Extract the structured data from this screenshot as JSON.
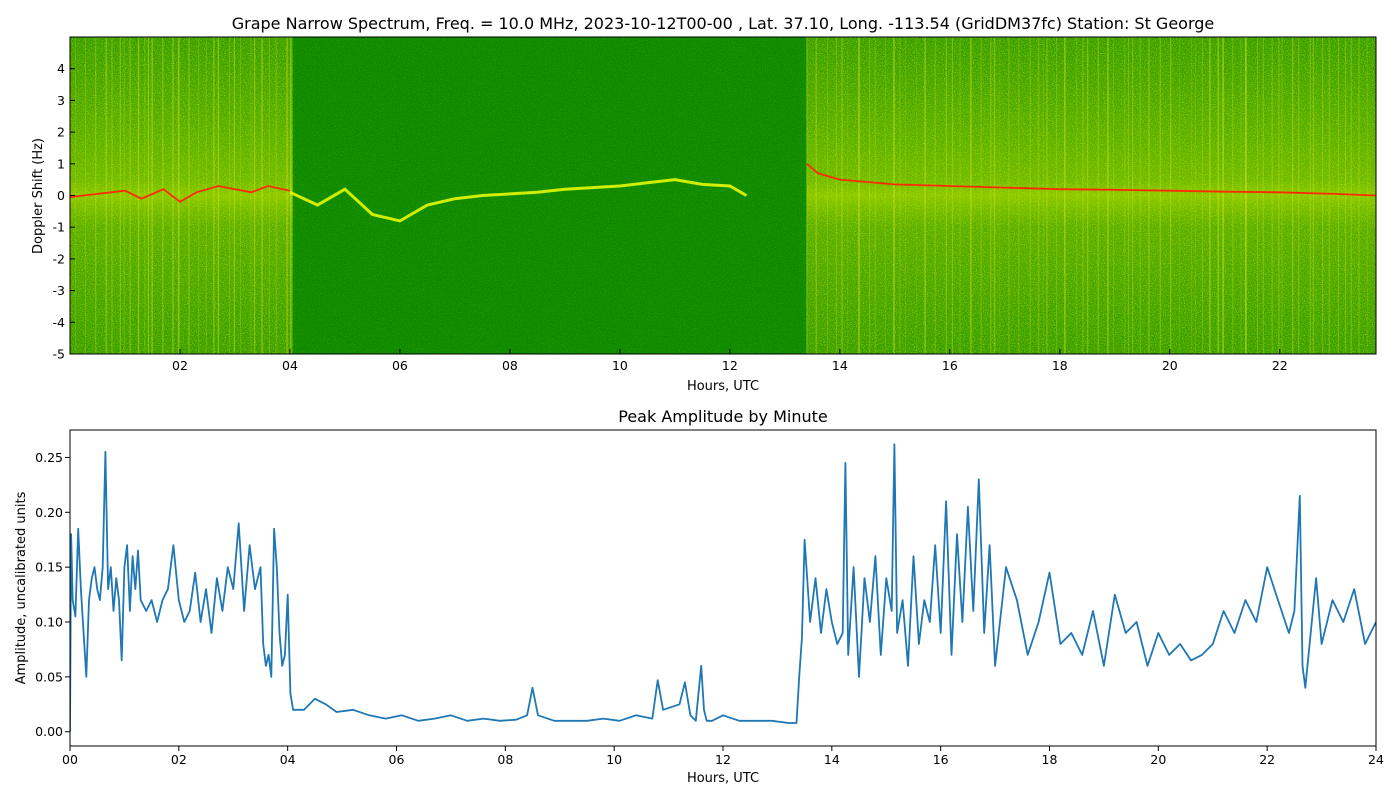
{
  "chart_data": [
    {
      "type": "heatmap",
      "title": "Grape Narrow Spectrum, Freq. = 10.0 MHz, 2023-10-12T00-00 , Lat.  37.10, Long. -113.54 (GridDM37fc) Station: St George",
      "xlabel": "Hours, UTC",
      "ylabel": "Doppler Shift (Hz)",
      "xlim": [
        0,
        23.75
      ],
      "ylim": [
        -5,
        5
      ],
      "x_ticks": [
        "02",
        "04",
        "06",
        "08",
        "10",
        "12",
        "14",
        "16",
        "18",
        "20",
        "22"
      ],
      "x_tick_values": [
        2,
        4,
        6,
        8,
        10,
        12,
        14,
        16,
        18,
        20,
        22
      ],
      "y_ticks": [
        "-5",
        "-4",
        "-3",
        "-2",
        "-1",
        "0",
        "1",
        "2",
        "3",
        "4"
      ],
      "y_tick_values": [
        -5,
        -4,
        -3,
        -2,
        -1,
        0,
        1,
        2,
        3,
        4
      ],
      "colors": {
        "background": "#0e8a00",
        "noise": "#b6d600",
        "signal": "#f2ff00",
        "peak": "#ff2a00"
      },
      "noisy_intervals": [
        [
          0,
          4.05
        ],
        [
          13.4,
          23.75
        ]
      ],
      "peak_trace": {
        "x": [
          0,
          0.5,
          1,
          1.3,
          1.7,
          2.0,
          2.3,
          2.7,
          3.0,
          3.3,
          3.6,
          4.0,
          13.4,
          13.6,
          14,
          15,
          16,
          17,
          18,
          19,
          20,
          21,
          22,
          23,
          23.75
        ],
        "y": [
          -0.05,
          0.05,
          0.15,
          -0.1,
          0.2,
          -0.2,
          0.1,
          0.3,
          0.2,
          0.1,
          0.3,
          0.15,
          1.0,
          0.7,
          0.5,
          0.35,
          0.3,
          0.25,
          0.2,
          0.18,
          0.15,
          0.12,
          0.1,
          0.05,
          0.0
        ]
      },
      "signal_trace": {
        "x": [
          4.0,
          4.5,
          5.0,
          5.5,
          6.0,
          6.5,
          7.0,
          7.5,
          8.0,
          8.5,
          9.0,
          9.5,
          10.0,
          10.5,
          11.0,
          11.5,
          12.0,
          12.3
        ],
        "y": [
          0.1,
          -0.3,
          0.2,
          -0.6,
          -0.8,
          -0.3,
          -0.1,
          0.0,
          0.05,
          0.1,
          0.2,
          0.25,
          0.3,
          0.4,
          0.5,
          0.35,
          0.3,
          0.0
        ]
      }
    },
    {
      "type": "line",
      "title": "Peak Amplitude by Minute",
      "xlabel": "Hours, UTC",
      "ylabel": "Amplitude, uncalibrated units",
      "xlim": [
        0,
        24
      ],
      "ylim": [
        -0.013,
        0.275
      ],
      "x_ticks": [
        "00",
        "02",
        "04",
        "06",
        "08",
        "10",
        "12",
        "14",
        "16",
        "18",
        "20",
        "22",
        "24"
      ],
      "x_tick_values": [
        0,
        2,
        4,
        6,
        8,
        10,
        12,
        14,
        16,
        18,
        20,
        22,
        24
      ],
      "y_ticks": [
        "0.00",
        "0.05",
        "0.10",
        "0.15",
        "0.20",
        "0.25"
      ],
      "y_tick_values": [
        0,
        0.05,
        0.1,
        0.15,
        0.2,
        0.25
      ],
      "color": "#1f77b4",
      "x": [
        0,
        0.02,
        0.05,
        0.1,
        0.15,
        0.2,
        0.25,
        0.3,
        0.35,
        0.4,
        0.45,
        0.5,
        0.55,
        0.6,
        0.65,
        0.7,
        0.75,
        0.8,
        0.85,
        0.9,
        0.95,
        1.0,
        1.05,
        1.1,
        1.15,
        1.2,
        1.25,
        1.3,
        1.4,
        1.5,
        1.6,
        1.7,
        1.8,
        1.9,
        2.0,
        2.1,
        2.2,
        2.3,
        2.4,
        2.5,
        2.6,
        2.7,
        2.8,
        2.9,
        3.0,
        3.1,
        3.2,
        3.3,
        3.4,
        3.5,
        3.55,
        3.6,
        3.65,
        3.7,
        3.75,
        3.8,
        3.85,
        3.9,
        3.95,
        4.0,
        4.05,
        4.1,
        4.3,
        4.5,
        4.7,
        4.9,
        5.2,
        5.5,
        5.8,
        6.1,
        6.4,
        6.7,
        7.0,
        7.3,
        7.6,
        7.9,
        8.2,
        8.4,
        8.5,
        8.6,
        8.9,
        9.2,
        9.5,
        9.8,
        10.1,
        10.4,
        10.7,
        10.8,
        10.9,
        11.2,
        11.3,
        11.4,
        11.5,
        11.6,
        11.65,
        11.7,
        11.8,
        12.0,
        12.3,
        12.6,
        12.9,
        13.2,
        13.35,
        13.4,
        13.45,
        13.5,
        13.6,
        13.7,
        13.8,
        13.9,
        14.0,
        14.1,
        14.2,
        14.25,
        14.3,
        14.4,
        14.5,
        14.6,
        14.7,
        14.8,
        14.9,
        15.0,
        15.1,
        15.15,
        15.2,
        15.3,
        15.4,
        15.5,
        15.6,
        15.7,
        15.8,
        15.9,
        16.0,
        16.1,
        16.2,
        16.3,
        16.4,
        16.5,
        16.6,
        16.7,
        16.8,
        16.9,
        17.0,
        17.2,
        17.4,
        17.6,
        17.8,
        18.0,
        18.2,
        18.4,
        18.6,
        18.8,
        19.0,
        19.2,
        19.4,
        19.6,
        19.8,
        20.0,
        20.2,
        20.4,
        20.6,
        20.8,
        21.0,
        21.2,
        21.4,
        21.6,
        21.8,
        22.0,
        22.2,
        22.4,
        22.5,
        22.6,
        22.65,
        22.7,
        22.8,
        22.9,
        23.0,
        23.2,
        23.4,
        23.6,
        23.8,
        24.0
      ],
      "y": [
        0.0,
        0.18,
        0.12,
        0.105,
        0.185,
        0.13,
        0.09,
        0.05,
        0.12,
        0.14,
        0.15,
        0.13,
        0.12,
        0.15,
        0.255,
        0.13,
        0.15,
        0.11,
        0.14,
        0.12,
        0.065,
        0.15,
        0.17,
        0.11,
        0.16,
        0.13,
        0.165,
        0.12,
        0.11,
        0.12,
        0.1,
        0.12,
        0.13,
        0.17,
        0.12,
        0.1,
        0.11,
        0.145,
        0.1,
        0.13,
        0.09,
        0.14,
        0.11,
        0.15,
        0.13,
        0.19,
        0.11,
        0.17,
        0.13,
        0.15,
        0.08,
        0.06,
        0.07,
        0.05,
        0.185,
        0.15,
        0.09,
        0.06,
        0.07,
        0.125,
        0.035,
        0.02,
        0.02,
        0.03,
        0.025,
        0.018,
        0.02,
        0.015,
        0.012,
        0.015,
        0.01,
        0.012,
        0.015,
        0.01,
        0.012,
        0.01,
        0.011,
        0.015,
        0.04,
        0.015,
        0.01,
        0.01,
        0.01,
        0.012,
        0.01,
        0.015,
        0.012,
        0.047,
        0.02,
        0.025,
        0.045,
        0.015,
        0.01,
        0.06,
        0.02,
        0.01,
        0.01,
        0.015,
        0.01,
        0.01,
        0.01,
        0.008,
        0.008,
        0.05,
        0.085,
        0.175,
        0.1,
        0.14,
        0.09,
        0.13,
        0.1,
        0.08,
        0.09,
        0.245,
        0.07,
        0.15,
        0.05,
        0.14,
        0.1,
        0.16,
        0.07,
        0.14,
        0.11,
        0.262,
        0.09,
        0.12,
        0.06,
        0.16,
        0.08,
        0.12,
        0.1,
        0.17,
        0.09,
        0.21,
        0.07,
        0.18,
        0.1,
        0.205,
        0.11,
        0.23,
        0.09,
        0.17,
        0.06,
        0.15,
        0.12,
        0.07,
        0.1,
        0.145,
        0.08,
        0.09,
        0.07,
        0.11,
        0.06,
        0.125,
        0.09,
        0.1,
        0.06,
        0.09,
        0.07,
        0.08,
        0.065,
        0.07,
        0.08,
        0.11,
        0.09,
        0.12,
        0.1,
        0.15,
        0.12,
        0.09,
        0.11,
        0.215,
        0.06,
        0.04,
        0.09,
        0.14,
        0.08,
        0.12,
        0.1,
        0.13,
        0.08,
        0.1
      ]
    }
  ]
}
